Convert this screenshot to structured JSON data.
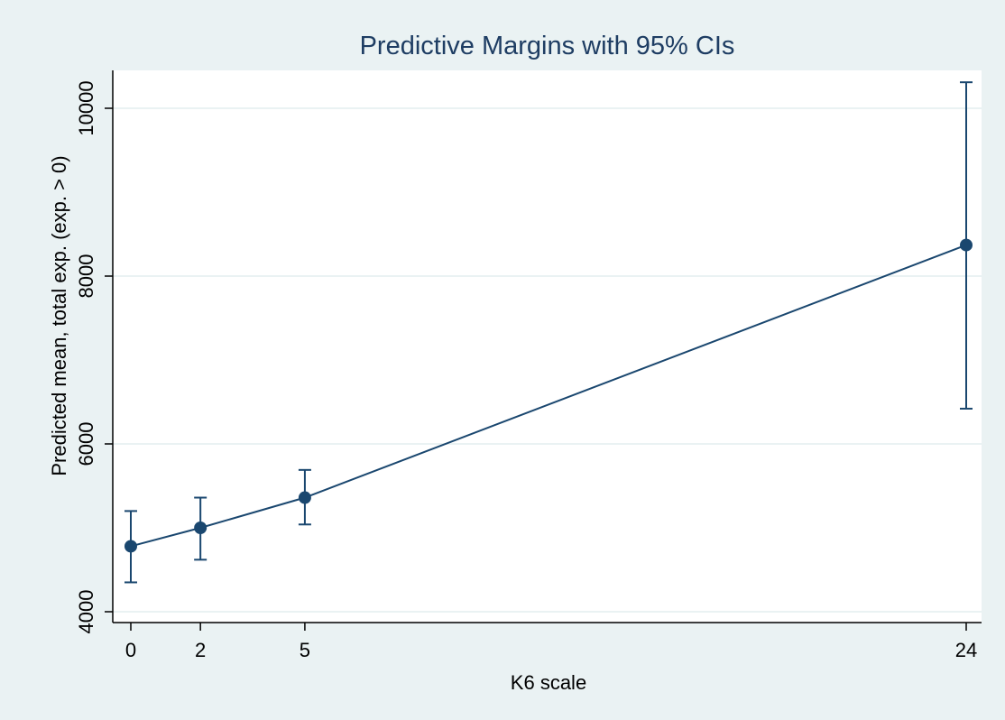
{
  "chart_data": {
    "type": "line",
    "title": "Predictive Margins with 95% CIs",
    "xlabel": "K6 scale",
    "ylabel": "Predicted mean, total exp. (exp. > 0)",
    "x": [
      0,
      2,
      5,
      24
    ],
    "xticks": [
      "0",
      "2",
      "5",
      "24"
    ],
    "yticks": [
      "4000",
      "6000",
      "8000",
      "10000"
    ],
    "ytick_values": [
      4000,
      6000,
      8000,
      10000
    ],
    "xlim": [
      0,
      24
    ],
    "ylim": [
      4000,
      10000
    ],
    "grid": true,
    "series": [
      {
        "values": [
          4780,
          5000,
          5360,
          8370
        ],
        "ci_lower": [
          4350,
          4620,
          5040,
          6420
        ],
        "ci_upper": [
          5200,
          5360,
          5690,
          10310
        ]
      }
    ],
    "colors": {
      "background": "#eaf2f3",
      "plot": "#ffffff",
      "series": "#1a476f",
      "title": "#1e3d63",
      "grid": "#eaf2f3",
      "text": "#000000"
    }
  }
}
